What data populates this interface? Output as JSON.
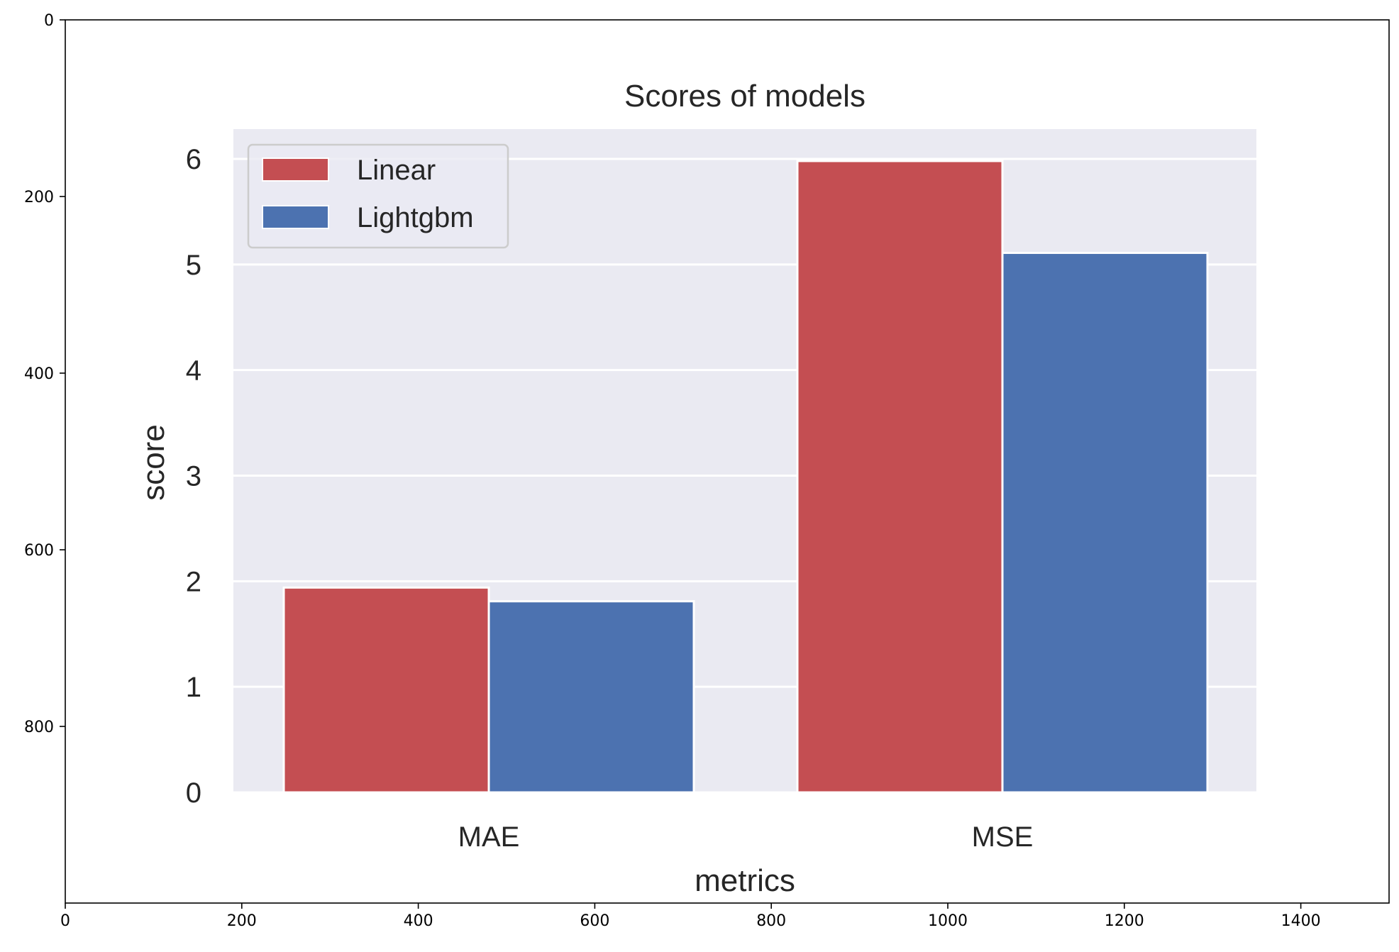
{
  "outer_axes": {
    "x_ticks": [
      "0",
      "200",
      "400",
      "600",
      "800",
      "1000",
      "1200",
      "1400"
    ],
    "y_ticks": [
      "0",
      "200",
      "400",
      "600",
      "800"
    ]
  },
  "chart_data": {
    "type": "bar",
    "title": "Scores of models",
    "xlabel": "metrics",
    "ylabel": "score",
    "categories": [
      "MAE",
      "MSE"
    ],
    "series": [
      {
        "name": "Linear",
        "values": [
          1.94,
          5.98
        ],
        "color": "#C44E52"
      },
      {
        "name": "Lightgbm",
        "values": [
          1.81,
          5.11
        ],
        "color": "#4C72B0"
      }
    ],
    "ylim": [
      0,
      6.3
    ],
    "y_ticks": [
      "0",
      "1",
      "2",
      "3",
      "4",
      "5",
      "6"
    ],
    "grid": true,
    "legend_position": "top-left",
    "background_color": "#EAEAF2"
  }
}
